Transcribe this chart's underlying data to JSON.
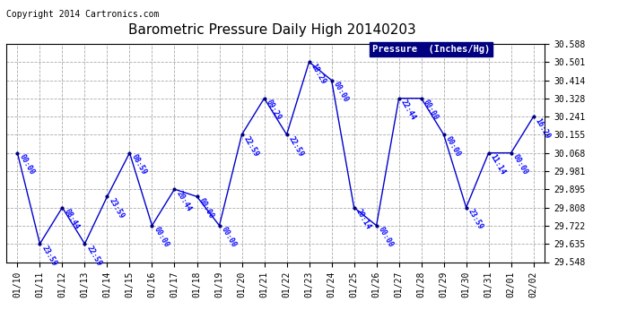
{
  "title": "Barometric Pressure Daily High 20140203",
  "copyright": "Copyright 2014 Cartronics.com",
  "legend_label": "Pressure  (Inches/Hg)",
  "x_labels": [
    "01/10",
    "01/11",
    "01/12",
    "01/13",
    "01/14",
    "01/15",
    "01/16",
    "01/17",
    "01/18",
    "01/19",
    "01/20",
    "01/21",
    "01/22",
    "01/23",
    "01/24",
    "01/25",
    "01/26",
    "01/27",
    "01/28",
    "01/29",
    "01/30",
    "01/31",
    "02/01",
    "02/02"
  ],
  "y_values": [
    30.068,
    29.635,
    29.808,
    29.635,
    29.86,
    30.068,
    29.722,
    29.895,
    29.86,
    29.722,
    30.155,
    30.328,
    30.155,
    30.501,
    30.414,
    29.808,
    29.722,
    30.328,
    30.328,
    30.155,
    29.808,
    30.068,
    30.068,
    30.241
  ],
  "annotations": [
    "00:00",
    "23:59",
    "08:44",
    "22:59",
    "23:59",
    "08:59",
    "00:00",
    "20:44",
    "00:00",
    "00:00",
    "22:59",
    "09:29",
    "22:59",
    "18:29",
    "00:00",
    "20:14",
    "00:00",
    "22:44",
    "00:00",
    "00:00",
    "23:59",
    "11:14",
    "00:00",
    "16:29"
  ],
  "ylim_min": 29.548,
  "ylim_max": 30.588,
  "yticks": [
    29.548,
    29.635,
    29.722,
    29.808,
    29.895,
    29.981,
    30.068,
    30.155,
    30.241,
    30.328,
    30.414,
    30.501,
    30.588
  ],
  "line_color": "#0000cc",
  "marker_color": "#000080",
  "bg_color": "#ffffff",
  "plot_bg_color": "#ffffff",
  "grid_color": "#aaaaaa",
  "title_color": "#000000",
  "annotation_color": "#0000ff",
  "legend_bg_color": "#000080",
  "legend_text_color": "#ffffff",
  "copyright_color": "#000000",
  "title_fontsize": 11,
  "annotation_fontsize": 6,
  "tick_fontsize": 7,
  "copyright_fontsize": 7
}
